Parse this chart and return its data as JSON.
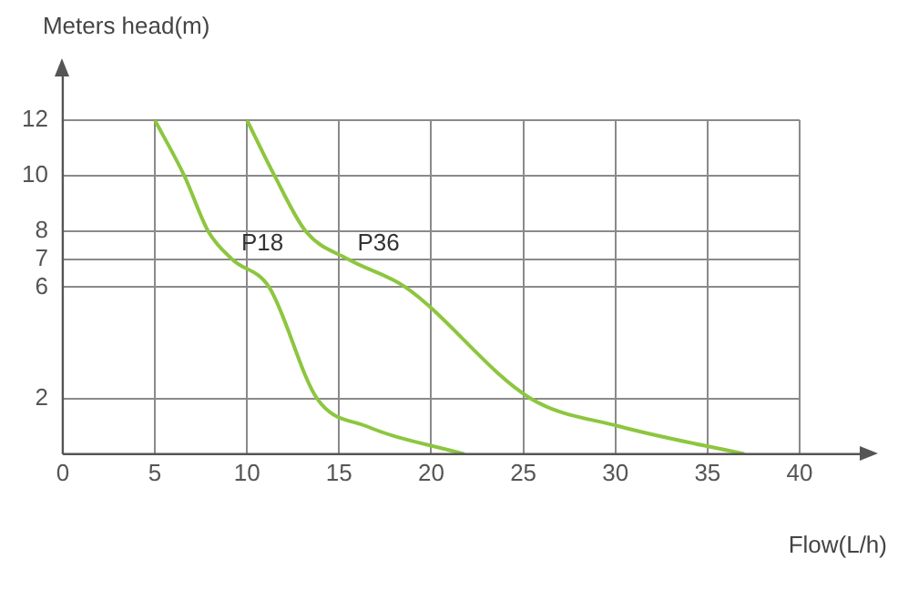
{
  "chart_data": {
    "type": "line",
    "xlabel": "Flow(L/h)",
    "ylabel": "Meters head(m)",
    "xlim": [
      0,
      40
    ],
    "xticks": [
      0,
      5,
      10,
      15,
      20,
      25,
      30,
      35,
      40
    ],
    "ylim": [
      0,
      12
    ],
    "yticks": [
      2,
      6,
      7,
      8,
      10,
      12
    ],
    "grid": true,
    "legend": false,
    "marker": "none",
    "line_style": "solid",
    "series": [
      {
        "name": "P18",
        "color": "#8dc63f",
        "x": [
          5,
          6.6,
          7.9,
          9.2,
          11.2,
          13.8,
          16.5,
          21.8
        ],
        "values": [
          12,
          10,
          8,
          7,
          6,
          2,
          1,
          0
        ]
      },
      {
        "name": "P36",
        "color": "#8dc63f",
        "x": [
          10,
          11.5,
          13.2,
          15.5,
          18.6,
          25.4,
          30.2,
          37
        ],
        "values": [
          12,
          10,
          8,
          7,
          6,
          2,
          1,
          0
        ]
      }
    ]
  }
}
